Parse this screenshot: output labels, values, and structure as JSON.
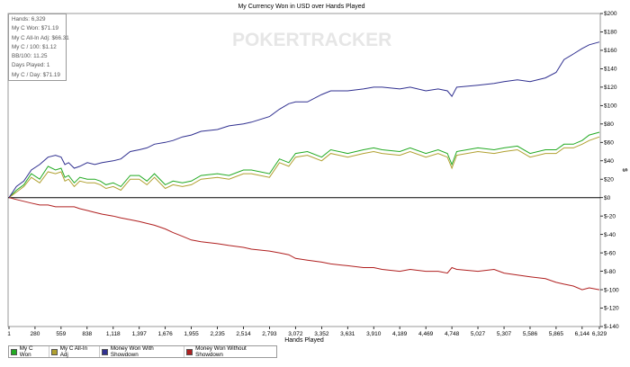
{
  "chart_data": {
    "type": "line",
    "title": "My Currency Won in USD over Hands Played",
    "xlabel": "Hands Played",
    "ylabel": "$",
    "xlim": [
      1,
      6329
    ],
    "ylim": [
      -140,
      200
    ],
    "x_ticks": [
      1,
      280,
      559,
      838,
      1118,
      1397,
      1676,
      1955,
      2235,
      2514,
      2793,
      3072,
      3352,
      3631,
      3910,
      4189,
      4469,
      4748,
      5027,
      5307,
      5586,
      5865,
      6144,
      6329
    ],
    "x_tick_labels": [
      "1",
      "280",
      "559",
      "838",
      "1,118",
      "1,397",
      "1,676",
      "1,955",
      "2,235",
      "2,514",
      "2,793",
      "3,072",
      "3,352",
      "3,631",
      "3,910",
      "4,189",
      "4,469",
      "4,748",
      "5,027",
      "5,307",
      "5,586",
      "5,865",
      "6,144",
      "6,329"
    ],
    "y_ticks": [
      -140,
      -120,
      -100,
      -80,
      -60,
      -40,
      -20,
      0,
      20,
      40,
      60,
      80,
      100,
      120,
      140,
      160,
      180,
      200
    ],
    "y_tick_labels": [
      "$-140",
      "$-120",
      "$-100",
      "$-80",
      "$-60",
      "$-40",
      "$-20",
      "$0",
      "$20",
      "$40",
      "$60",
      "$80",
      "$100",
      "$120",
      "$140",
      "$160",
      "$180",
      "$200"
    ],
    "grid": false,
    "legend_position": "bottom-left",
    "series": [
      {
        "name": "My C Won",
        "color": "#22aa22",
        "points": [
          [
            1,
            0
          ],
          [
            80,
            8
          ],
          [
            160,
            14
          ],
          [
            240,
            26
          ],
          [
            330,
            20
          ],
          [
            420,
            34
          ],
          [
            500,
            30
          ],
          [
            560,
            32
          ],
          [
            600,
            22
          ],
          [
            640,
            24
          ],
          [
            700,
            16
          ],
          [
            760,
            22
          ],
          [
            840,
            20
          ],
          [
            920,
            20
          ],
          [
            980,
            18
          ],
          [
            1040,
            14
          ],
          [
            1118,
            16
          ],
          [
            1200,
            12
          ],
          [
            1300,
            24
          ],
          [
            1397,
            24
          ],
          [
            1480,
            18
          ],
          [
            1560,
            26
          ],
          [
            1676,
            14
          ],
          [
            1760,
            18
          ],
          [
            1860,
            16
          ],
          [
            1955,
            18
          ],
          [
            2060,
            24
          ],
          [
            2235,
            26
          ],
          [
            2360,
            24
          ],
          [
            2514,
            30
          ],
          [
            2600,
            30
          ],
          [
            2793,
            26
          ],
          [
            2900,
            42
          ],
          [
            3000,
            38
          ],
          [
            3072,
            48
          ],
          [
            3200,
            50
          ],
          [
            3352,
            44
          ],
          [
            3450,
            52
          ],
          [
            3631,
            48
          ],
          [
            3800,
            52
          ],
          [
            3910,
            54
          ],
          [
            4000,
            52
          ],
          [
            4189,
            50
          ],
          [
            4300,
            54
          ],
          [
            4469,
            48
          ],
          [
            4600,
            52
          ],
          [
            4700,
            48
          ],
          [
            4748,
            36
          ],
          [
            4800,
            50
          ],
          [
            5027,
            54
          ],
          [
            5200,
            52
          ],
          [
            5307,
            54
          ],
          [
            5450,
            56
          ],
          [
            5586,
            48
          ],
          [
            5750,
            52
          ],
          [
            5865,
            52
          ],
          [
            5950,
            58
          ],
          [
            6050,
            58
          ],
          [
            6144,
            62
          ],
          [
            6220,
            68
          ],
          [
            6329,
            71
          ]
        ]
      },
      {
        "name": "My C All-In Adj",
        "color": "#b0a030",
        "points": [
          [
            1,
            0
          ],
          [
            80,
            6
          ],
          [
            160,
            12
          ],
          [
            240,
            22
          ],
          [
            330,
            16
          ],
          [
            420,
            28
          ],
          [
            500,
            26
          ],
          [
            560,
            28
          ],
          [
            600,
            18
          ],
          [
            640,
            20
          ],
          [
            700,
            12
          ],
          [
            760,
            18
          ],
          [
            840,
            16
          ],
          [
            920,
            16
          ],
          [
            980,
            14
          ],
          [
            1040,
            10
          ],
          [
            1118,
            12
          ],
          [
            1200,
            8
          ],
          [
            1300,
            20
          ],
          [
            1397,
            20
          ],
          [
            1480,
            14
          ],
          [
            1560,
            22
          ],
          [
            1676,
            10
          ],
          [
            1760,
            14
          ],
          [
            1860,
            12
          ],
          [
            1955,
            14
          ],
          [
            2060,
            20
          ],
          [
            2235,
            22
          ],
          [
            2360,
            20
          ],
          [
            2514,
            26
          ],
          [
            2600,
            26
          ],
          [
            2793,
            22
          ],
          [
            2900,
            38
          ],
          [
            3000,
            34
          ],
          [
            3072,
            44
          ],
          [
            3200,
            46
          ],
          [
            3352,
            40
          ],
          [
            3450,
            48
          ],
          [
            3631,
            44
          ],
          [
            3800,
            48
          ],
          [
            3910,
            50
          ],
          [
            4000,
            48
          ],
          [
            4189,
            46
          ],
          [
            4300,
            50
          ],
          [
            4469,
            44
          ],
          [
            4600,
            48
          ],
          [
            4700,
            44
          ],
          [
            4748,
            32
          ],
          [
            4800,
            46
          ],
          [
            5027,
            50
          ],
          [
            5200,
            48
          ],
          [
            5307,
            50
          ],
          [
            5450,
            52
          ],
          [
            5586,
            44
          ],
          [
            5750,
            48
          ],
          [
            5865,
            48
          ],
          [
            5950,
            54
          ],
          [
            6050,
            54
          ],
          [
            6144,
            58
          ],
          [
            6220,
            62
          ],
          [
            6329,
            66
          ]
        ]
      },
      {
        "name": "Money Won With Showdown",
        "color": "#303090",
        "points": [
          [
            1,
            0
          ],
          [
            80,
            12
          ],
          [
            160,
            18
          ],
          [
            240,
            30
          ],
          [
            330,
            36
          ],
          [
            420,
            44
          ],
          [
            500,
            46
          ],
          [
            560,
            44
          ],
          [
            600,
            36
          ],
          [
            640,
            38
          ],
          [
            700,
            32
          ],
          [
            760,
            34
          ],
          [
            840,
            38
          ],
          [
            920,
            36
          ],
          [
            1000,
            38
          ],
          [
            1118,
            40
          ],
          [
            1200,
            42
          ],
          [
            1300,
            50
          ],
          [
            1397,
            52
          ],
          [
            1480,
            54
          ],
          [
            1560,
            58
          ],
          [
            1676,
            60
          ],
          [
            1760,
            62
          ],
          [
            1860,
            66
          ],
          [
            1955,
            68
          ],
          [
            2060,
            72
          ],
          [
            2235,
            74
          ],
          [
            2360,
            78
          ],
          [
            2514,
            80
          ],
          [
            2600,
            82
          ],
          [
            2793,
            88
          ],
          [
            2900,
            96
          ],
          [
            3000,
            102
          ],
          [
            3072,
            104
          ],
          [
            3200,
            104
          ],
          [
            3352,
            112
          ],
          [
            3450,
            116
          ],
          [
            3631,
            116
          ],
          [
            3800,
            118
          ],
          [
            3910,
            120
          ],
          [
            4000,
            120
          ],
          [
            4189,
            118
          ],
          [
            4300,
            120
          ],
          [
            4469,
            116
          ],
          [
            4600,
            118
          ],
          [
            4700,
            116
          ],
          [
            4748,
            110
          ],
          [
            4800,
            120
          ],
          [
            5027,
            122
          ],
          [
            5200,
            124
          ],
          [
            5307,
            126
          ],
          [
            5450,
            128
          ],
          [
            5586,
            126
          ],
          [
            5750,
            130
          ],
          [
            5865,
            136
          ],
          [
            5950,
            150
          ],
          [
            6050,
            156
          ],
          [
            6144,
            162
          ],
          [
            6220,
            166
          ],
          [
            6329,
            169
          ]
        ]
      },
      {
        "name": "Money Won Without Showdown",
        "color": "#b02020",
        "points": [
          [
            1,
            0
          ],
          [
            80,
            -2
          ],
          [
            160,
            -4
          ],
          [
            240,
            -6
          ],
          [
            330,
            -8
          ],
          [
            420,
            -8
          ],
          [
            500,
            -10
          ],
          [
            560,
            -10
          ],
          [
            640,
            -10
          ],
          [
            700,
            -10
          ],
          [
            760,
            -12
          ],
          [
            840,
            -14
          ],
          [
            920,
            -16
          ],
          [
            1000,
            -18
          ],
          [
            1118,
            -20
          ],
          [
            1200,
            -22
          ],
          [
            1300,
            -24
          ],
          [
            1397,
            -26
          ],
          [
            1480,
            -28
          ],
          [
            1560,
            -30
          ],
          [
            1676,
            -34
          ],
          [
            1760,
            -38
          ],
          [
            1860,
            -42
          ],
          [
            1955,
            -46
          ],
          [
            2060,
            -48
          ],
          [
            2235,
            -50
          ],
          [
            2360,
            -52
          ],
          [
            2514,
            -54
          ],
          [
            2600,
            -56
          ],
          [
            2793,
            -58
          ],
          [
            2900,
            -60
          ],
          [
            3000,
            -62
          ],
          [
            3072,
            -66
          ],
          [
            3200,
            -68
          ],
          [
            3352,
            -70
          ],
          [
            3450,
            -72
          ],
          [
            3631,
            -74
          ],
          [
            3800,
            -76
          ],
          [
            3910,
            -76
          ],
          [
            4000,
            -78
          ],
          [
            4189,
            -80
          ],
          [
            4300,
            -78
          ],
          [
            4469,
            -80
          ],
          [
            4600,
            -80
          ],
          [
            4700,
            -82
          ],
          [
            4748,
            -76
          ],
          [
            4800,
            -78
          ],
          [
            5027,
            -80
          ],
          [
            5200,
            -78
          ],
          [
            5307,
            -82
          ],
          [
            5450,
            -84
          ],
          [
            5586,
            -86
          ],
          [
            5750,
            -88
          ],
          [
            5865,
            -92
          ],
          [
            5950,
            -94
          ],
          [
            6050,
            -96
          ],
          [
            6144,
            -100
          ],
          [
            6220,
            -98
          ],
          [
            6329,
            -100
          ]
        ]
      }
    ]
  },
  "stats": {
    "hands": "Hands: 6,329",
    "won": "My C Won: $71.19",
    "allin_adj": "My C All-In Adj: $66.31",
    "per100": "My C / 100: $1.12",
    "bb100": "BB/100: 11.25",
    "days": "Days Played: 1",
    "per_day": "My C / Day: $71.19"
  },
  "watermark": "POKERTRACKER",
  "legend": {
    "items": [
      {
        "label": "My C Won",
        "color": "#22aa22"
      },
      {
        "label": "My C All-In Adj",
        "color": "#b0a030"
      },
      {
        "label": "Money Won With Showdown",
        "color": "#303090"
      },
      {
        "label": "Money Won Without Showdown",
        "color": "#b02020"
      }
    ]
  }
}
